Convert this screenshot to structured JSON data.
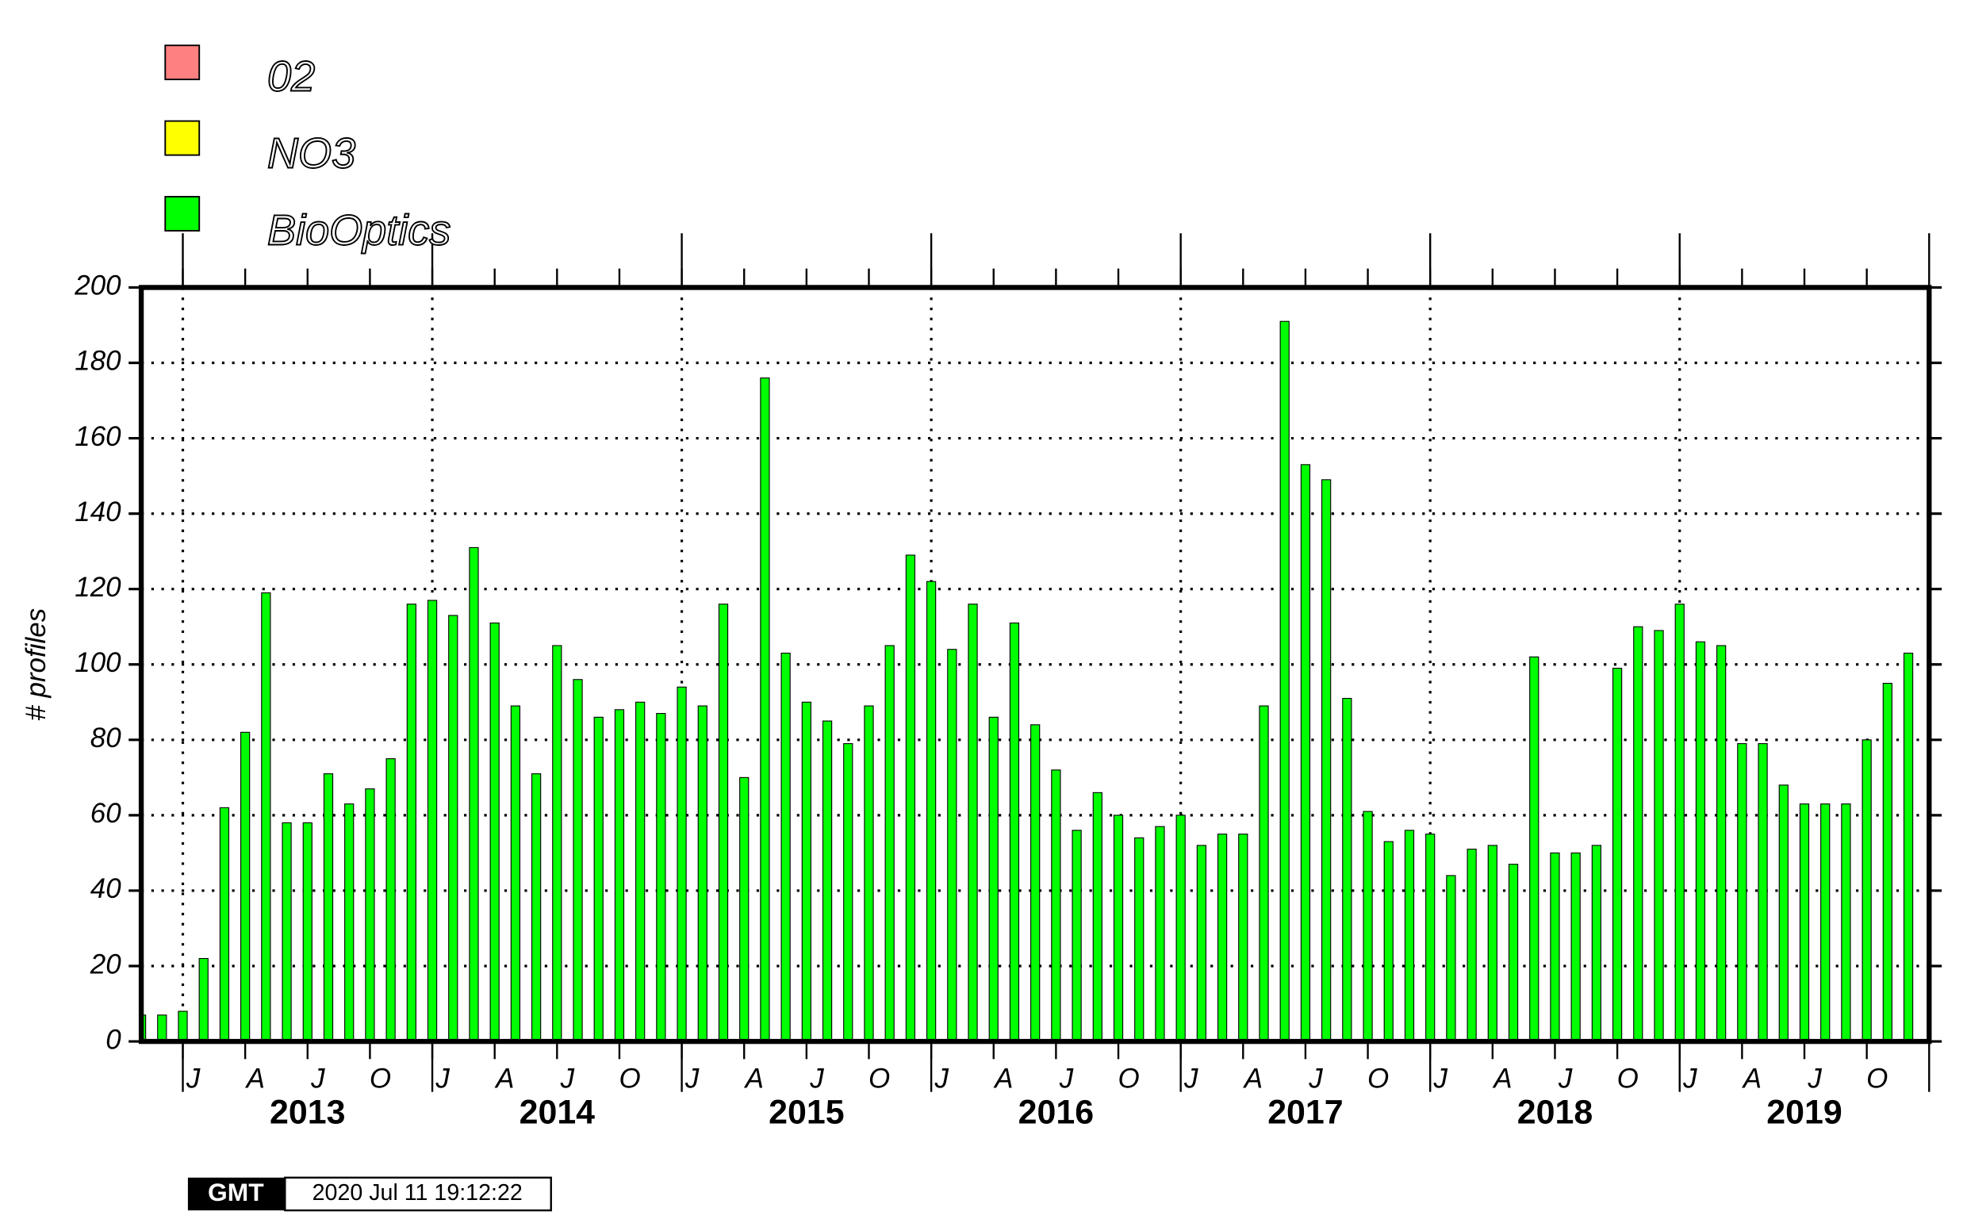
{
  "chart_data": {
    "type": "bar",
    "y_label": "# profiles",
    "series": [
      {
        "name": "02",
        "color": "#ff8080"
      },
      {
        "name": "NO3",
        "color": "#ffff00"
      },
      {
        "name": "BioOptics",
        "color": "#00ff00",
        "values": [
          7,
          7,
          8,
          22,
          62,
          82,
          119,
          58,
          58,
          71,
          63,
          67,
          75,
          116,
          117,
          113,
          131,
          111,
          89,
          71,
          105,
          96,
          86,
          88,
          90,
          87,
          94,
          89,
          116,
          70,
          176,
          103,
          90,
          85,
          79,
          89,
          105,
          129,
          122,
          104,
          116,
          86,
          111,
          84,
          72,
          56,
          66,
          60,
          54,
          57,
          60,
          52,
          55,
          55,
          89,
          191,
          153,
          149,
          91,
          61,
          53,
          56,
          55,
          44,
          51,
          52,
          47,
          102,
          50,
          50,
          52,
          99,
          110,
          109,
          116,
          106,
          105,
          79,
          79,
          68,
          63,
          63,
          63,
          80,
          95,
          103
        ]
      }
    ],
    "x": [
      "2012-11",
      "2012-12",
      "2013-01",
      "2013-02",
      "2013-03",
      "2013-04",
      "2013-05",
      "2013-06",
      "2013-07",
      "2013-08",
      "2013-09",
      "2013-10",
      "2013-11",
      "2013-12",
      "2014-01",
      "2014-02",
      "2014-03",
      "2014-04",
      "2014-05",
      "2014-06",
      "2014-07",
      "2014-08",
      "2014-09",
      "2014-10",
      "2014-11",
      "2014-12",
      "2015-01",
      "2015-02",
      "2015-03",
      "2015-04",
      "2015-05",
      "2015-06",
      "2015-07",
      "2015-08",
      "2015-09",
      "2015-10",
      "2015-11",
      "2015-12",
      "2016-01",
      "2016-02",
      "2016-03",
      "2016-04",
      "2016-05",
      "2016-06",
      "2016-07",
      "2016-08",
      "2016-09",
      "2016-10",
      "2016-11",
      "2016-12",
      "2017-01",
      "2017-02",
      "2017-03",
      "2017-04",
      "2017-05",
      "2017-06",
      "2017-07",
      "2017-08",
      "2017-09",
      "2017-10",
      "2017-11",
      "2017-12",
      "2018-01",
      "2018-02",
      "2018-03",
      "2018-04",
      "2018-05",
      "2018-06",
      "2018-07",
      "2018-08",
      "2018-09",
      "2018-10",
      "2018-11",
      "2018-12",
      "2019-01",
      "2019-02",
      "2019-03",
      "2019-04",
      "2019-05",
      "2019-06",
      "2019-07",
      "2019-08",
      "2019-09",
      "2019-10",
      "2019-11",
      "2019-12"
    ],
    "xlim": [
      "2012-11",
      "2020-01"
    ],
    "xticks": [
      "2013-01",
      "2014-01",
      "2015-01",
      "2016-01",
      "2017-01",
      "2018-01",
      "2019-01",
      "2020-01"
    ],
    "year_labels": [
      2013,
      2014,
      2015,
      2016,
      2017,
      2018,
      2019
    ],
    "quarter_labels": [
      "J",
      "A",
      "J",
      "O"
    ],
    "ylim": [
      0,
      200
    ],
    "yticks": [
      0,
      20,
      40,
      60,
      80,
      100,
      120,
      140,
      160,
      180,
      200
    ],
    "grid": true
  },
  "footer": {
    "logo": "GMT",
    "timestamp": "2020 Jul 11 19:12:22"
  }
}
